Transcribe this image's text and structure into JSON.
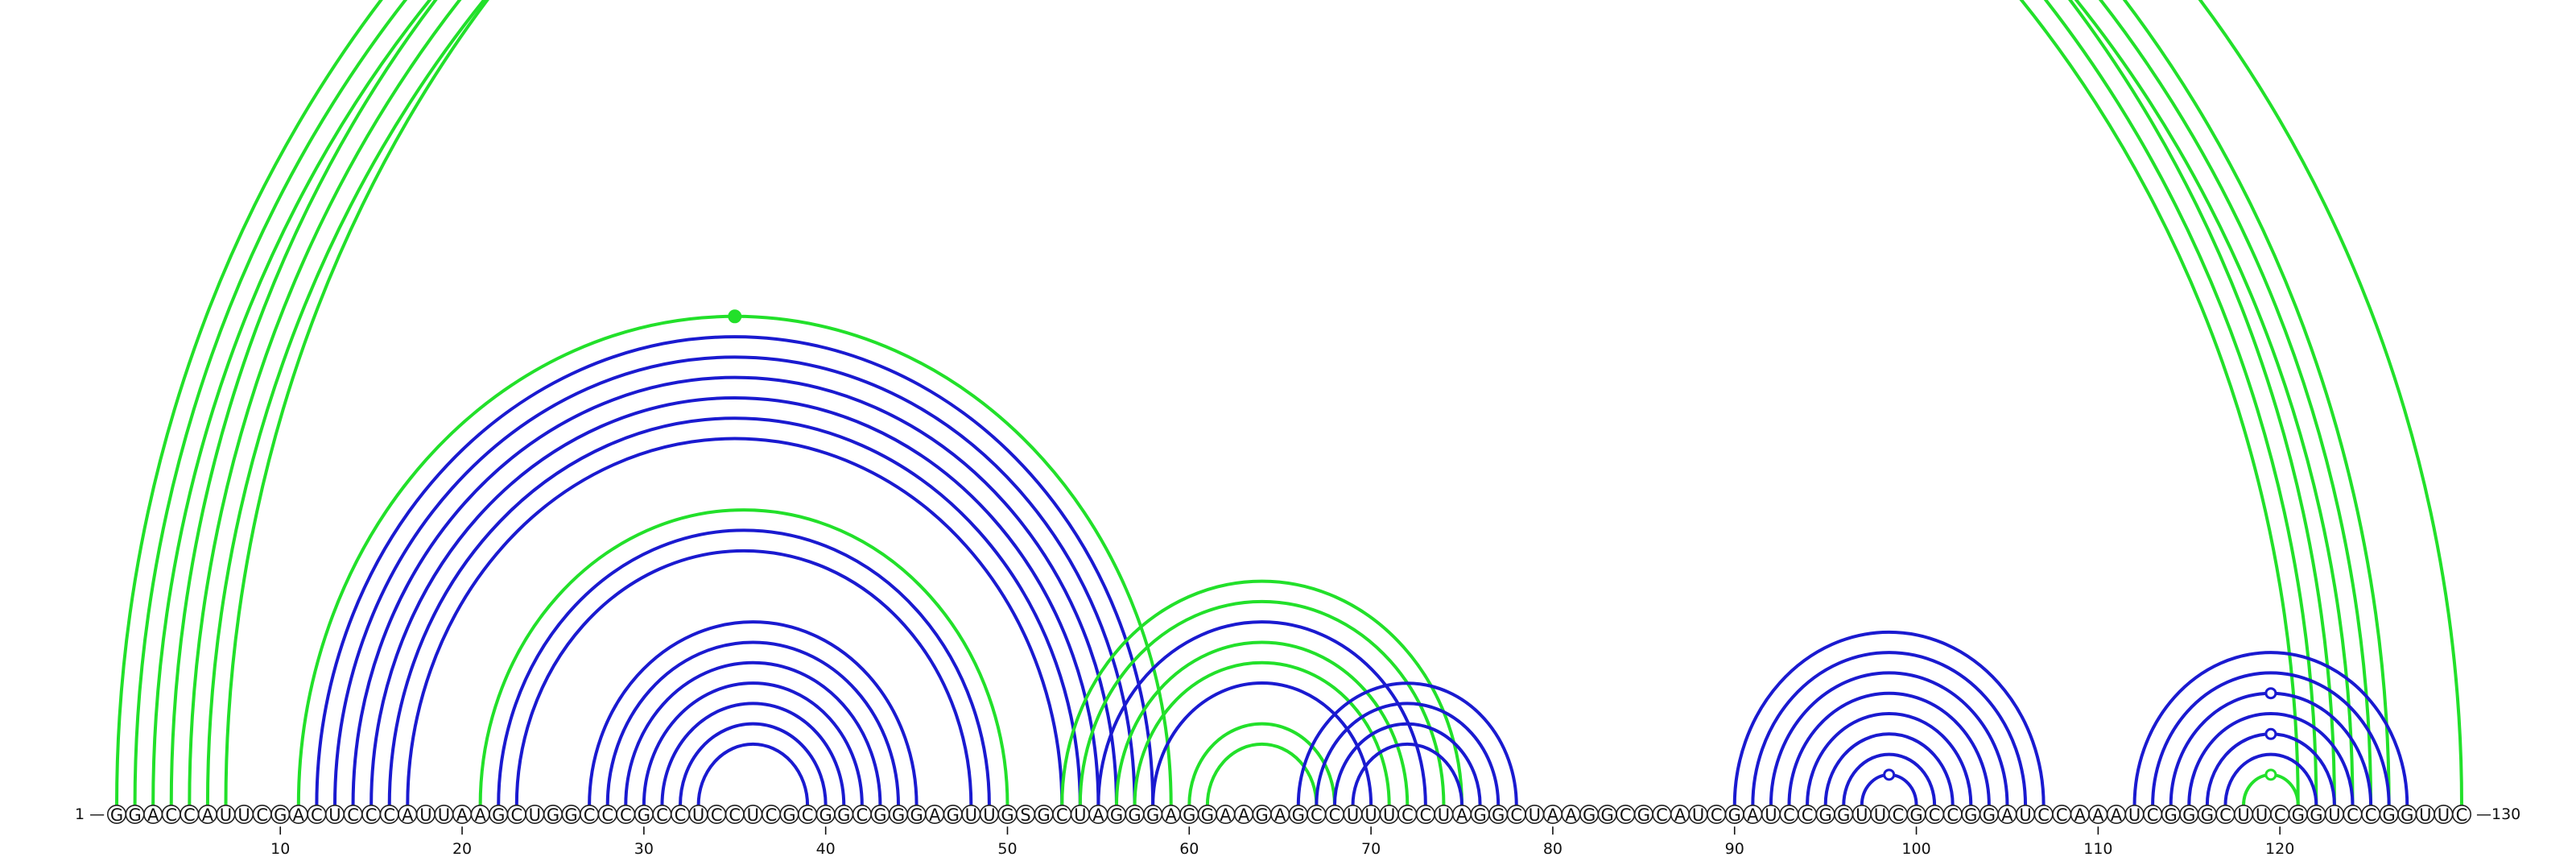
{
  "chart_data": {
    "type": "arc-diagram",
    "sequence": "GGACCAUUCGACUCCCAUUAAGCUGGCCCGCCUCCUCGCGGCGGGAGUUGSGCUAGGGAGGAAGAGCCUUUCCUAGGCUAAGGCGCAUCGAUCCGGUUCGCCGGAUCCAAAUCGGGCUUCGGUCCGGUUC",
    "start_label": "1",
    "end_label": "130",
    "ticks": [
      10,
      20,
      30,
      40,
      50,
      60,
      70,
      80,
      90,
      100,
      110,
      120
    ],
    "colors": {
      "blue": "#1a1ad0",
      "green": "#22e02a"
    },
    "arcs": [
      {
        "i": 1,
        "j": 123,
        "color": "green"
      },
      {
        "i": 2,
        "j": 122,
        "color": "green"
      },
      {
        "i": 3,
        "j": 121,
        "color": "green"
      },
      {
        "i": 4,
        "j": 126,
        "color": "green"
      },
      {
        "i": 5,
        "j": 125,
        "color": "green"
      },
      {
        "i": 6,
        "j": 124,
        "color": "green"
      },
      {
        "i": 7,
        "j": 130,
        "color": "green"
      },
      {
        "i": 11,
        "j": 59,
        "color": "green"
      },
      {
        "i": 12,
        "j": 58,
        "color": "blue"
      },
      {
        "i": 13,
        "j": 57,
        "color": "blue"
      },
      {
        "i": 14,
        "j": 56,
        "color": "blue"
      },
      {
        "i": 15,
        "j": 55,
        "color": "blue"
      },
      {
        "i": 16,
        "j": 54,
        "color": "blue"
      },
      {
        "i": 17,
        "j": 53,
        "color": "blue"
      },
      {
        "i": 21,
        "j": 50,
        "color": "green"
      },
      {
        "i": 22,
        "j": 49,
        "color": "blue"
      },
      {
        "i": 23,
        "j": 48,
        "color": "blue"
      },
      {
        "i": 27,
        "j": 45,
        "color": "blue"
      },
      {
        "i": 28,
        "j": 44,
        "color": "blue"
      },
      {
        "i": 29,
        "j": 43,
        "color": "blue"
      },
      {
        "i": 30,
        "j": 42,
        "color": "blue"
      },
      {
        "i": 31,
        "j": 41,
        "color": "blue"
      },
      {
        "i": 32,
        "j": 40,
        "color": "blue"
      },
      {
        "i": 33,
        "j": 39,
        "color": "blue"
      },
      {
        "i": 53,
        "j": 75,
        "color": "green"
      },
      {
        "i": 54,
        "j": 74,
        "color": "green"
      },
      {
        "i": 55,
        "j": 73,
        "color": "blue"
      },
      {
        "i": 56,
        "j": 72,
        "color": "green"
      },
      {
        "i": 57,
        "j": 71,
        "color": "green"
      },
      {
        "i": 58,
        "j": 70,
        "color": "blue"
      },
      {
        "i": 60,
        "j": 68,
        "color": "green"
      },
      {
        "i": 61,
        "j": 67,
        "color": "green"
      },
      {
        "i": 66,
        "j": 78,
        "color": "blue"
      },
      {
        "i": 67,
        "j": 77,
        "color": "blue"
      },
      {
        "i": 68,
        "j": 76,
        "color": "blue"
      },
      {
        "i": 69,
        "j": 75,
        "color": "blue"
      },
      {
        "i": 90,
        "j": 107,
        "color": "blue"
      },
      {
        "i": 91,
        "j": 106,
        "color": "blue"
      },
      {
        "i": 92,
        "j": 105,
        "color": "blue"
      },
      {
        "i": 93,
        "j": 104,
        "color": "blue"
      },
      {
        "i": 94,
        "j": 103,
        "color": "blue"
      },
      {
        "i": 95,
        "j": 102,
        "color": "blue"
      },
      {
        "i": 96,
        "j": 101,
        "color": "blue"
      },
      {
        "i": 97,
        "j": 100,
        "color": "blue"
      },
      {
        "i": 112,
        "j": 127,
        "color": "blue"
      },
      {
        "i": 113,
        "j": 126,
        "color": "blue"
      },
      {
        "i": 114,
        "j": 125,
        "color": "blue"
      },
      {
        "i": 115,
        "j": 124,
        "color": "blue"
      },
      {
        "i": 116,
        "j": 123,
        "color": "blue"
      },
      {
        "i": 117,
        "j": 122,
        "color": "blue"
      },
      {
        "i": 118,
        "j": 121,
        "color": "green"
      }
    ],
    "markers": [
      {
        "after_arc": 7,
        "style": "filled",
        "color": "green"
      },
      {
        "after_arc": 43,
        "style": "open",
        "color": "blue"
      },
      {
        "after_arc": 46,
        "style": "open",
        "color": "blue"
      },
      {
        "after_arc": 48,
        "style": "open",
        "color": "blue"
      },
      {
        "after_arc": 50,
        "style": "open",
        "color": "green"
      }
    ]
  }
}
